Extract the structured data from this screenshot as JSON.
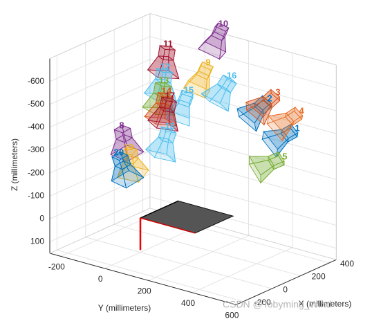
{
  "chart_data": {
    "type": "camera-extrinsics-3d",
    "xlabel": "X (millimeters)",
    "ylabel": "Y (millimeters)",
    "zlabel": "Z (millimeters)",
    "xlim": [
      -250,
      450
    ],
    "ylim": [
      -250,
      600
    ],
    "zlim": [
      -700,
      150
    ],
    "z_reversed": true,
    "xticks": [
      -200,
      0,
      200,
      400
    ],
    "yticks": [
      -200,
      0,
      200,
      400,
      600
    ],
    "zticks": [
      -600,
      -500,
      -400,
      -300,
      -200,
      -100,
      0,
      100
    ],
    "grid": true,
    "cameras": [
      {
        "name": "1",
        "color": "#0072BD",
        "x": 300,
        "y": 520,
        "z": -443
      },
      {
        "name": "2",
        "color": "#0072BD",
        "x": 300,
        "y": 394,
        "z": -540
      },
      {
        "name": "3",
        "color": "#D95319",
        "x": 300,
        "y": 432,
        "z": -577
      },
      {
        "name": "4",
        "color": "#E8702A",
        "x": 300,
        "y": 539,
        "z": -524
      },
      {
        "name": "5",
        "color": "#77AC30",
        "x": 300,
        "y": 463,
        "z": -304
      },
      {
        "name": "8",
        "color": "#7E2F8E",
        "x": -100,
        "y": -20,
        "z": -425
      },
      {
        "name": "9",
        "color": "#EDB120",
        "x": 100,
        "y": 244,
        "z": -713
      },
      {
        "name": "10",
        "color": "#7E2F8E",
        "x": 100,
        "y": 313,
        "z": -901
      },
      {
        "name": "11",
        "color": "#A2142F",
        "x": 100,
        "y": 61,
        "z": -746
      },
      {
        "name": "12",
        "color": "#4DBEEE",
        "x": 100,
        "y": 48,
        "z": -643
      },
      {
        "name": "13",
        "color": "#77AC30",
        "x": 100,
        "y": 42,
        "z": -581
      },
      {
        "name": "14",
        "color": "#D95319",
        "x": 100,
        "y": 54,
        "z": -539
      },
      {
        "name": "15",
        "color": "#4DBEEE",
        "x": 100,
        "y": 155,
        "z": -569
      },
      {
        "name": "16",
        "color": "#4DBEEE",
        "x": 300,
        "y": 221,
        "z": -593
      },
      {
        "name": "17",
        "color": "#A2142F",
        "x": 100,
        "y": 70,
        "z": -522
      },
      {
        "name": "18",
        "color": "#4DBEEE",
        "x": 100,
        "y": 70,
        "z": -389
      },
      {
        "name": "19",
        "color": "#EDB120",
        "x": -100,
        "y": 12,
        "z": -337
      },
      {
        "name": "20",
        "color": "#0072BD",
        "x": -100,
        "y": -33,
        "z": -303
      }
    ],
    "watermark": "CSDN @Tobyming_Wind"
  }
}
